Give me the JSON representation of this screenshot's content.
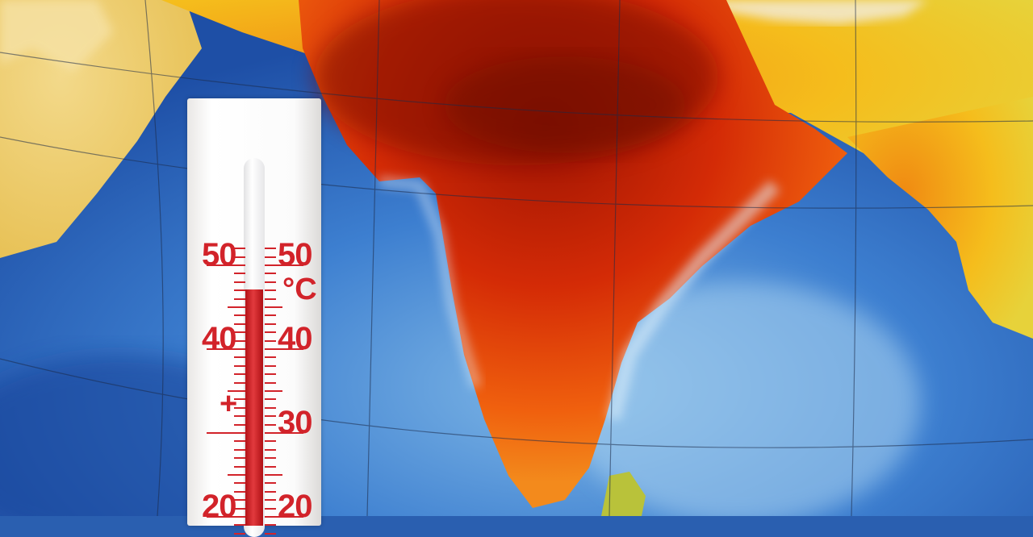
{
  "image": {
    "subject": "thermometer over heat map",
    "colors": {
      "ocean_deep": "#1e4fa6",
      "ocean_shallow": "#7fb7e6",
      "heat_hot": "#b11a05",
      "heat_warm": "#f05a0a",
      "heat_mild": "#f5b21a",
      "land_cool": "#e8cf4a",
      "scale_red": "#d2232a"
    }
  },
  "thermometer": {
    "unit": "°C",
    "sign": "+",
    "left_labels": [
      "50",
      "40",
      "",
      "20"
    ],
    "right_labels": [
      "50",
      "40",
      "30",
      "20"
    ],
    "reading_celsius": 47
  }
}
